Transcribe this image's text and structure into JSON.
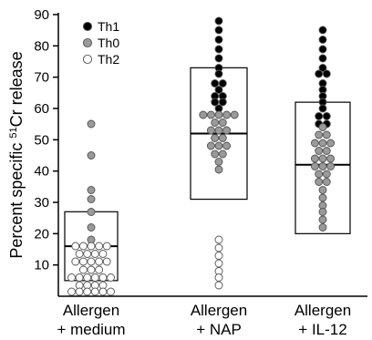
{
  "chart_data": {
    "type": "scatter",
    "subtype": "dot-plot with box",
    "title": "",
    "ylabel": "Percent specific",
    "ylabel_sup": "51",
    "ylabel_suffix": "Cr release",
    "ylim": [
      0,
      90
    ],
    "yticks": [
      10,
      20,
      30,
      40,
      50,
      60,
      70,
      80,
      90
    ],
    "grid": false,
    "legend_position": "top-left",
    "legend": [
      {
        "name": "Th1",
        "fill": "#000000"
      },
      {
        "name": "Th0",
        "fill": "#9a9a9a"
      },
      {
        "name": "Th2",
        "fill": "#ffffff"
      }
    ],
    "groups": [
      {
        "label_line1": "Allergen",
        "label_line2": "+ medium",
        "box": {
          "low": 5,
          "high": 27,
          "median": 16
        },
        "points": {
          "Th1": [],
          "Th0": [
            55,
            45,
            34,
            31,
            27,
            22,
            18
          ],
          "Th2": [
            16,
            16,
            16,
            16,
            16,
            13.5,
            13.5,
            13.5,
            13.5,
            11,
            11,
            11,
            11,
            11,
            8.5,
            8.5,
            8.5,
            6,
            6,
            6,
            6,
            6,
            6,
            3.5,
            3.5,
            3.5,
            3.5,
            1.5,
            1.5,
            1.5,
            1.5,
            1.5,
            1.5
          ]
        }
      },
      {
        "label_line1": "Allergen",
        "label_line2": "+ NAP",
        "box": {
          "low": 31,
          "high": 73,
          "median": 52
        },
        "points": {
          "Th1": [
            88,
            85,
            82,
            79,
            76,
            73,
            71,
            68,
            68,
            66,
            64,
            64,
            62,
            62,
            60
          ],
          "Th0": [
            58,
            58,
            58,
            58,
            58,
            55.5,
            55.5,
            53,
            53,
            53,
            50.5,
            50.5,
            48,
            48,
            48,
            45.5,
            45.5,
            43,
            40.5
          ],
          "Th2": [
            18,
            15.5,
            13,
            10.5,
            8,
            6,
            3.5
          ]
        }
      },
      {
        "label_line1": "Allergen",
        "label_line2": "+ IL-12",
        "box": {
          "low": 20,
          "high": 62,
          "median": 42
        },
        "points": {
          "Th1": [
            85,
            82,
            79,
            76,
            73,
            71,
            71,
            68,
            66,
            64,
            62,
            60,
            57.5,
            57.5,
            55,
            55
          ],
          "Th0": [
            54,
            51.5,
            51.5,
            49,
            49,
            49,
            46.5,
            46.5,
            44,
            44,
            44,
            41.5,
            41.5,
            41.5,
            39,
            39,
            36.5,
            36.5,
            34,
            31.5,
            29,
            27,
            24.5,
            22
          ]
        }
      }
    ]
  }
}
